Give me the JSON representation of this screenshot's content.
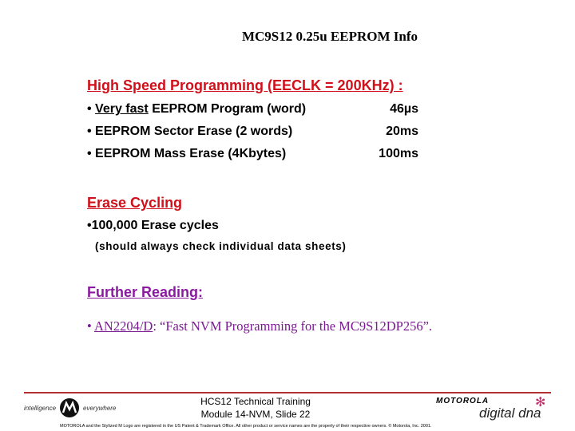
{
  "title": "MC9S12 0.25u EEPROM Info",
  "high_speed": {
    "heading": "High Speed Programming (EECLK = 200KHz) :",
    "items": [
      {
        "emph": "Very fast",
        "label": " EEPROM Program (word)",
        "value": "46µs"
      },
      {
        "label": "EEPROM Sector Erase (2 words)",
        "value": "20ms"
      },
      {
        "label": "EEPROM Mass Erase (4Kbytes)",
        "value": "100ms"
      }
    ]
  },
  "erase_cycling": {
    "heading": "Erase Cycling",
    "item": "•100,000 Erase cycles",
    "note": "(should always check individual data sheets)"
  },
  "further_reading": {
    "heading": "Further Reading:",
    "link": "AN2204/D",
    "text": ": “Fast NVM Programming for the MC9S12DP256”."
  },
  "footer": {
    "line1": "HCS12 Technical Training",
    "line2": "Module 14-NVM, Slide 22",
    "tagline_left": "intelligence",
    "tagline_right": "everywhere",
    "brand": "MOTOROLA",
    "brand_sub": "digital dna",
    "legal": "MOTOROLA and the Stylized M Logo are registered in the US Patent & Trademark Office. All other product or service names are the property of their respective owners. © Motorola, Inc. 2001."
  },
  "colors": {
    "heading_red": "#d0101a",
    "heading_purple": "#8a1aa0",
    "rule": "#b03030"
  }
}
